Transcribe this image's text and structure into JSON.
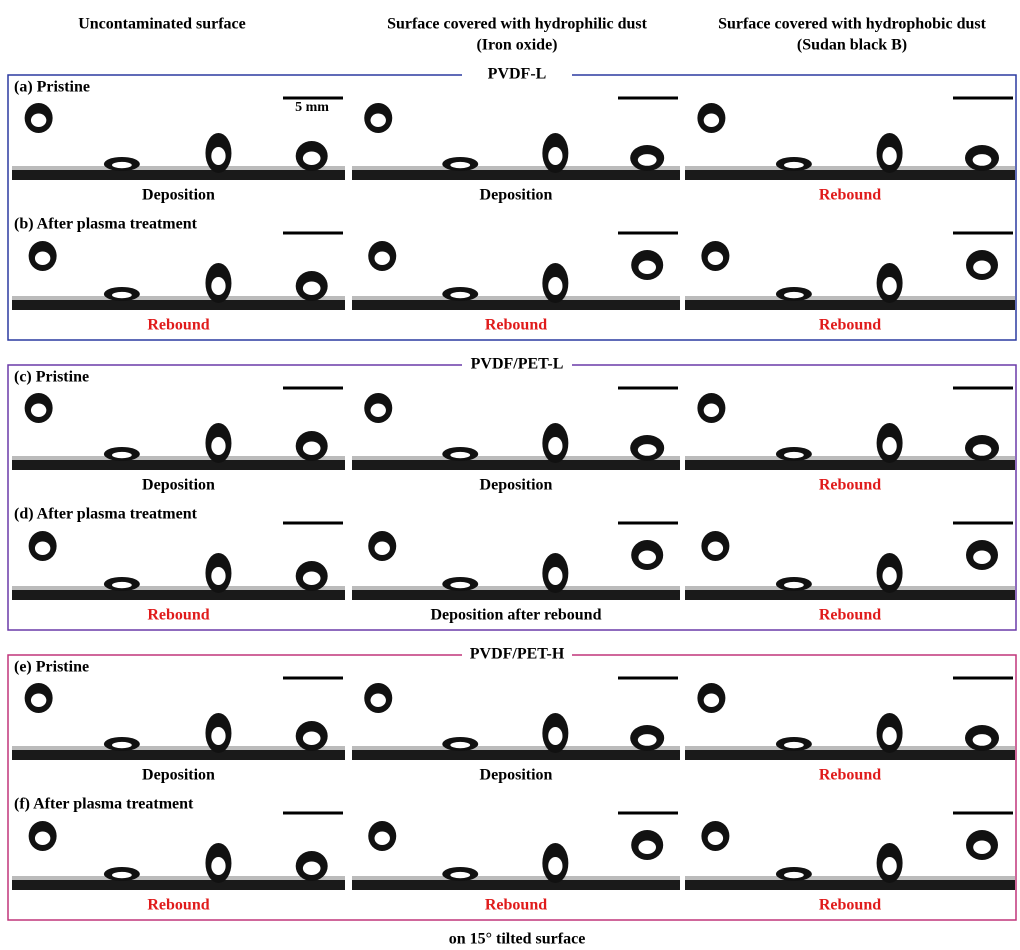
{
  "columns": [
    {
      "title": "Uncontaminated surface"
    },
    {
      "title": "Surface covered with hydrophilic dust",
      "subtitle": "(Iron oxide)"
    },
    {
      "title": "Surface covered with hydrophobic dust",
      "subtitle": "(Sudan black B)"
    }
  ],
  "scale_bar": "5 mm",
  "groups": [
    {
      "title": "PVDF-L",
      "border": "#2b3aa0",
      "rows": [
        {
          "label": "(a) Pristine",
          "outcomes": [
            {
              "text": "Deposition",
              "color": "#000000"
            },
            {
              "text": "Deposition",
              "color": "#000000"
            },
            {
              "text": "Rebound",
              "color": "#e01b1b"
            }
          ]
        },
        {
          "label": "(b) After plasma treatment",
          "outcomes": [
            {
              "text": "Rebound",
              "color": "#e01b1b"
            },
            {
              "text": "Rebound",
              "color": "#e01b1b"
            },
            {
              "text": "Rebound",
              "color": "#e01b1b"
            }
          ]
        }
      ]
    },
    {
      "title": "PVDF/PET-L",
      "border": "#6a3aa8",
      "rows": [
        {
          "label": "(c) Pristine",
          "outcomes": [
            {
              "text": "Deposition",
              "color": "#000000"
            },
            {
              "text": "Deposition",
              "color": "#000000"
            },
            {
              "text": "Rebound",
              "color": "#e01b1b"
            }
          ]
        },
        {
          "label": "(d) After plasma treatment",
          "outcomes": [
            {
              "text": "Rebound",
              "color": "#e01b1b"
            },
            {
              "text": "Deposition after rebound",
              "color": "#000000"
            },
            {
              "text": "Rebound",
              "color": "#e01b1b"
            }
          ]
        }
      ]
    },
    {
      "title": "PVDF/PET-H",
      "border": "#c0357a",
      "rows": [
        {
          "label": "(e) Pristine",
          "outcomes": [
            {
              "text": "Deposition",
              "color": "#000000"
            },
            {
              "text": "Deposition",
              "color": "#000000"
            },
            {
              "text": "Rebound",
              "color": "#e01b1b"
            }
          ]
        },
        {
          "label": "(f) After plasma treatment",
          "outcomes": [
            {
              "text": "Rebound",
              "color": "#e01b1b"
            },
            {
              "text": "Rebound",
              "color": "#e01b1b"
            },
            {
              "text": "Rebound",
              "color": "#e01b1b"
            }
          ]
        }
      ]
    }
  ],
  "footer": "on 15° tilted surface"
}
